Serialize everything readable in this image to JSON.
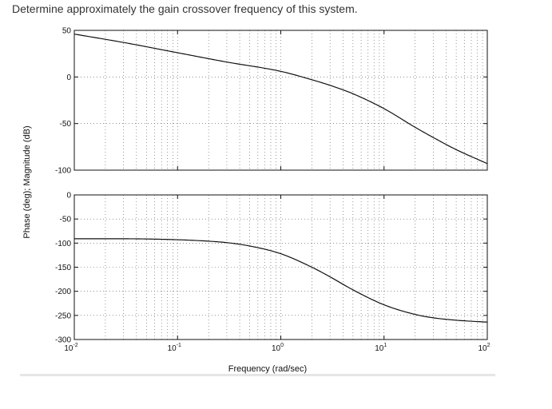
{
  "question": "Determine approximately the gain crossover frequency of this system.",
  "chart_data": [
    {
      "type": "line",
      "panel": "magnitude",
      "xscale": "log",
      "xlim": [
        0.01,
        100
      ],
      "ylim": [
        -100,
        50
      ],
      "yticks": [
        50,
        0,
        -50,
        -100
      ],
      "ytick_labels": [
        "50",
        "0",
        "-50",
        "-100"
      ],
      "grid": true,
      "series": [
        {
          "x": [
            0.01,
            0.03,
            0.1,
            0.3,
            1,
            2,
            3,
            5,
            10,
            20,
            30,
            50,
            100
          ],
          "values": [
            46,
            37,
            26,
            16,
            6,
            -3,
            -9,
            -18,
            -34,
            -54,
            -65,
            -78,
            -93
          ]
        }
      ]
    },
    {
      "type": "line",
      "panel": "phase",
      "xscale": "log",
      "xlim": [
        0.01,
        100
      ],
      "ylim": [
        -300,
        0
      ],
      "yticks": [
        0,
        -50,
        -100,
        -150,
        -200,
        -250,
        -300
      ],
      "ytick_labels": [
        "0",
        "-50",
        "-100",
        "-150",
        "-200",
        "-250",
        "-300"
      ],
      "xtick_labels": [
        {
          "base": "10",
          "exp": "-2"
        },
        {
          "base": "10",
          "exp": "-1"
        },
        {
          "base": "10",
          "exp": "0"
        },
        {
          "base": "10",
          "exp": "1"
        },
        {
          "base": "10",
          "exp": "2"
        }
      ],
      "grid": true,
      "series": [
        {
          "x": [
            0.01,
            0.03,
            0.1,
            0.2,
            0.3,
            0.5,
            1,
            2,
            3,
            5,
            10,
            20,
            30,
            50,
            100
          ],
          "values": [
            -91,
            -91,
            -93,
            -96,
            -99,
            -106,
            -122,
            -150,
            -170,
            -197,
            -228,
            -248,
            -255,
            -260,
            -264
          ]
        }
      ]
    }
  ],
  "ylabel": "Phase (deg); Magnitude (dB)",
  "xlabel": "Frequency (rad/sec)"
}
